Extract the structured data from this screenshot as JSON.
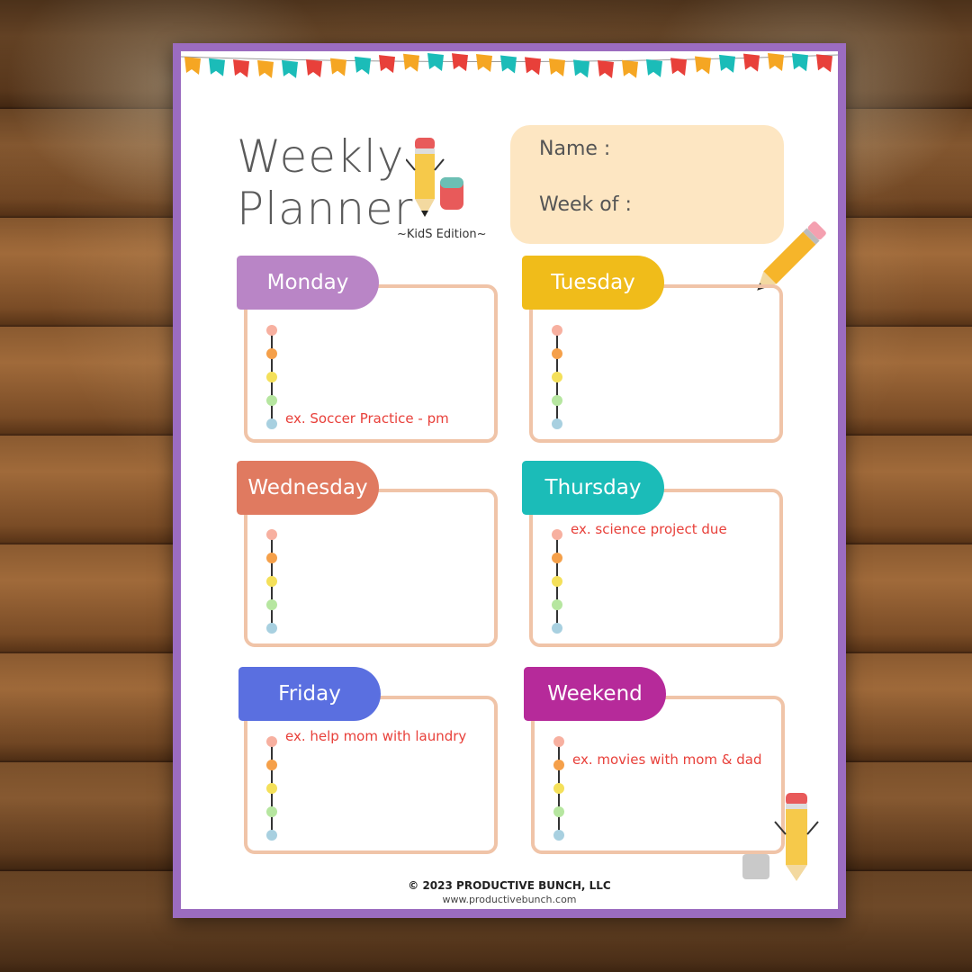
{
  "planner": {
    "title_line1": "Weekly",
    "title_line2": "Planner",
    "edition": "~KidS Edition~",
    "name_label": "Name :",
    "week_label": "Week of :",
    "days": [
      {
        "label": "Monday",
        "color": "#b985c6",
        "example": "ex. Soccer Practice - pm",
        "example_line": 5
      },
      {
        "label": "Tuesday",
        "color": "#f0bc1a",
        "example": "",
        "example_line": 0
      },
      {
        "label": "Wednesday",
        "color": "#e07a60",
        "example": "",
        "example_line": 0
      },
      {
        "label": "Thursday",
        "color": "#1bbcb8",
        "example": "ex. science project due",
        "example_line": 1
      },
      {
        "label": "Friday",
        "color": "#5a6fe0",
        "example": "ex. help mom with laundry",
        "example_line": 1
      },
      {
        "label": "Weekend",
        "color": "#b62a9a",
        "example": "ex. movies with mom & dad",
        "example_line": 2
      }
    ],
    "dot_colors": [
      "#f7b0a0",
      "#f5a04a",
      "#f4e05a",
      "#b6e6a0",
      "#a8d0e0"
    ],
    "bunting_colors": [
      "#f5a623",
      "#1bbcb8",
      "#e8403a"
    ],
    "border_color": "#9b6cc0",
    "footer": "© 2023 PRODUCTIVE BUNCH, LLC",
    "website": "www.productivebunch.com"
  }
}
